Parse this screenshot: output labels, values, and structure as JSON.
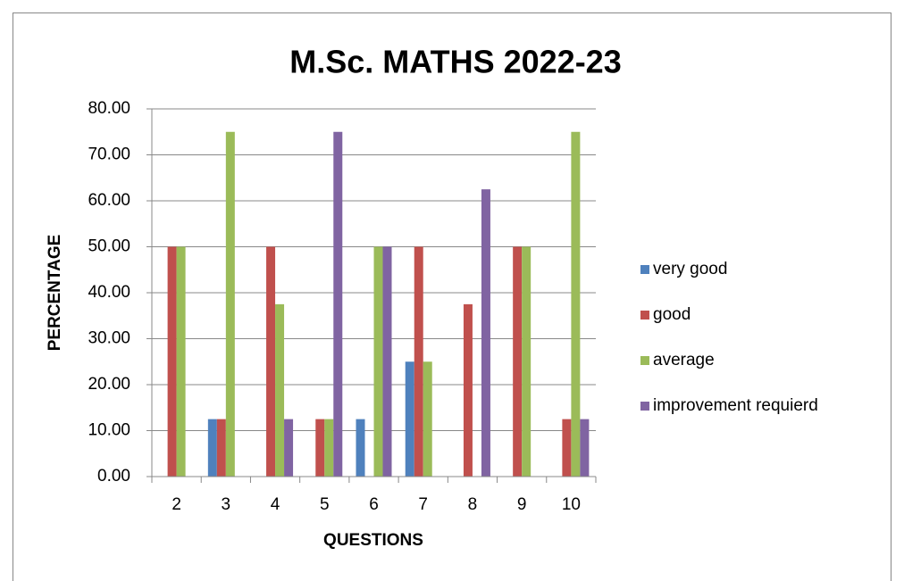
{
  "chart_data": {
    "type": "bar",
    "title": "M.Sc. MATHS 2022-23",
    "x_label": "QUESTIONS",
    "y_label": "PERCENTAGE",
    "categories": [
      "2",
      "3",
      "4",
      "5",
      "6",
      "7",
      "8",
      "9",
      "10"
    ],
    "series": [
      {
        "name": "very good",
        "color": "#4f81bd",
        "values": [
          0,
          12.5,
          0,
          0,
          12.5,
          25,
          0,
          0,
          0
        ]
      },
      {
        "name": "good",
        "color": "#c0504d",
        "values": [
          50,
          12.5,
          50,
          12.5,
          0,
          50,
          37.5,
          50,
          12.5
        ]
      },
      {
        "name": "average",
        "color": "#9bbb59",
        "values": [
          50,
          75,
          37.5,
          12.5,
          50,
          25,
          0,
          50,
          75
        ]
      },
      {
        "name": "improvement requierd",
        "color": "#8064a2",
        "values": [
          0,
          0,
          12.5,
          75,
          50,
          0,
          62.5,
          0,
          12.5
        ]
      }
    ],
    "ylim": [
      0,
      80
    ],
    "yticks": [
      {
        "value": 0,
        "label": "0.00"
      },
      {
        "value": 10,
        "label": "10.00"
      },
      {
        "value": 20,
        "label": "20.00"
      },
      {
        "value": 30,
        "label": "30.00"
      },
      {
        "value": 40,
        "label": "40.00"
      },
      {
        "value": 50,
        "label": "50.00"
      },
      {
        "value": 60,
        "label": "60.00"
      },
      {
        "value": 70,
        "label": "70.00"
      },
      {
        "value": 80,
        "label": "80.00"
      }
    ],
    "grid": true,
    "legend": "right"
  }
}
